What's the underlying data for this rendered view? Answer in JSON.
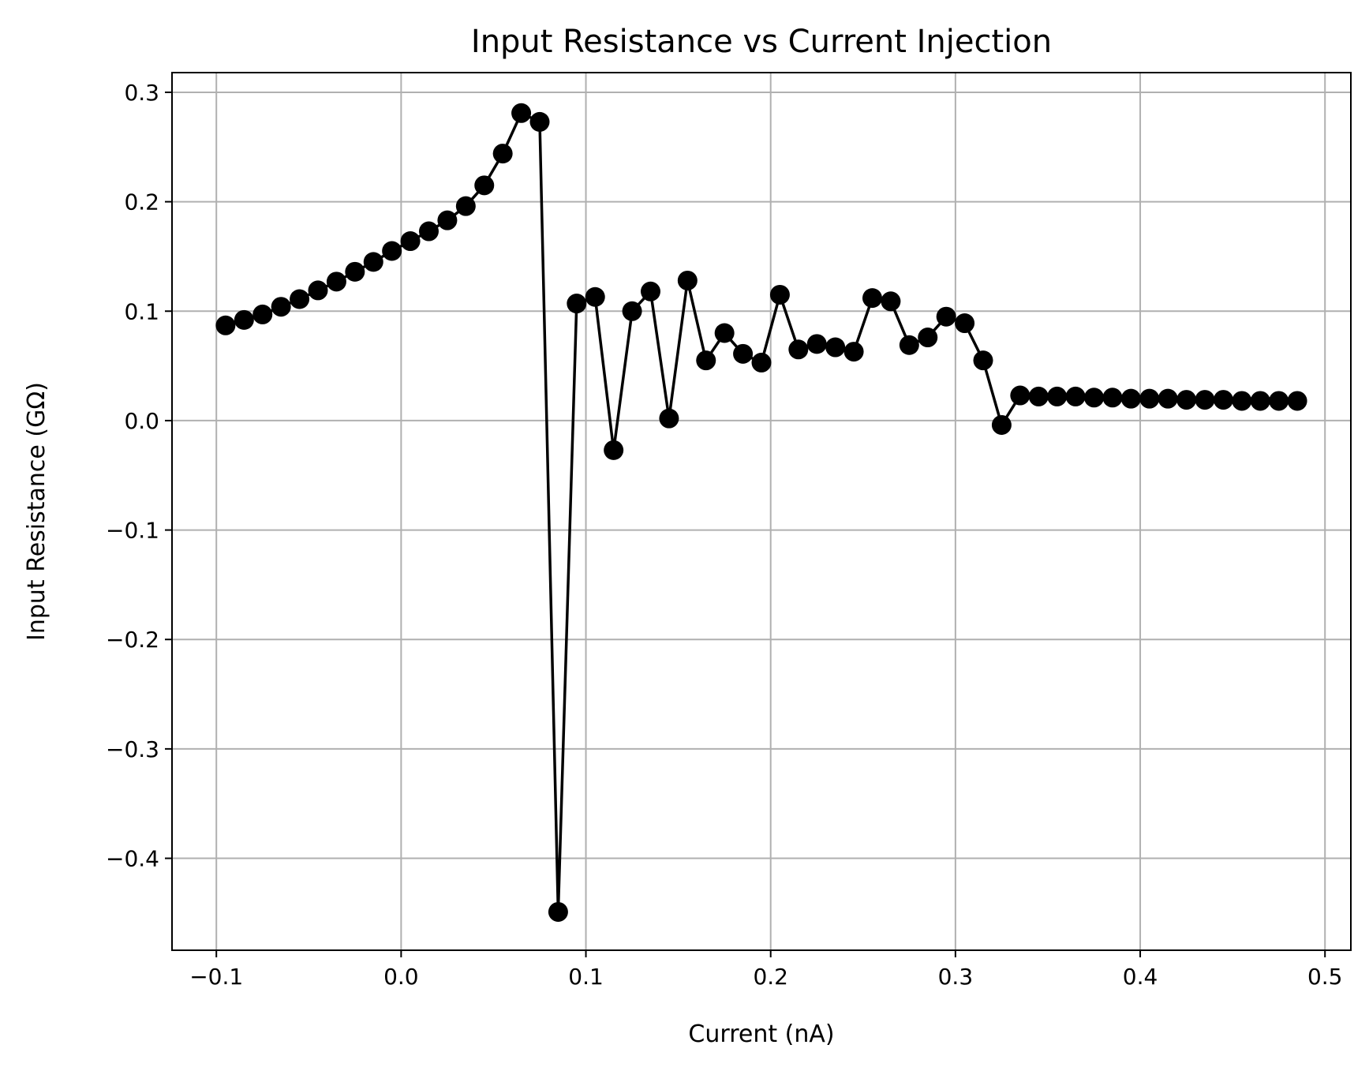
{
  "chart_data": {
    "type": "line",
    "title": "Input Resistance vs Current Injection",
    "xlabel": "Current (nA)",
    "ylabel": "Input Resistance (GΩ)",
    "xlim": [
      -0.124,
      0.514
    ],
    "ylim": [
      -0.484,
      0.318
    ],
    "xticks": [
      -0.1,
      0.0,
      0.1,
      0.2,
      0.3,
      0.4,
      0.5
    ],
    "xtick_labels": [
      "−0.1",
      "0.0",
      "0.1",
      "0.2",
      "0.3",
      "0.4",
      "0.5"
    ],
    "yticks": [
      0.3,
      0.2,
      0.1,
      0.0,
      -0.1,
      -0.2,
      -0.3,
      -0.4
    ],
    "ytick_labels": [
      "0.3",
      "0.2",
      "0.1",
      "0.0",
      "−0.1",
      "−0.2",
      "−0.3",
      "−0.4"
    ],
    "grid": true,
    "legend": null,
    "color": "#000000",
    "marker": "circle",
    "series": [
      {
        "x": [
          -0.095,
          -0.085,
          -0.075,
          -0.065,
          -0.055,
          -0.045,
          -0.035,
          -0.025,
          -0.015,
          -0.005,
          0.005,
          0.015,
          0.025,
          0.035,
          0.045,
          0.055,
          0.065,
          0.075,
          0.085,
          0.095,
          0.105,
          0.115,
          0.125,
          0.135,
          0.145,
          0.155,
          0.165,
          0.175,
          0.185,
          0.195,
          0.205,
          0.215,
          0.225,
          0.235,
          0.245,
          0.255,
          0.265,
          0.275,
          0.285,
          0.295,
          0.305,
          0.315,
          0.325,
          0.335,
          0.345,
          0.355,
          0.365,
          0.375,
          0.385,
          0.395,
          0.405,
          0.415,
          0.425,
          0.435,
          0.445,
          0.455,
          0.465,
          0.475,
          0.485
        ],
        "y": [
          0.087,
          0.092,
          0.097,
          0.104,
          0.111,
          0.119,
          0.127,
          0.136,
          0.145,
          0.155,
          0.164,
          0.173,
          0.183,
          0.196,
          0.215,
          0.244,
          0.281,
          0.273,
          -0.449,
          0.107,
          0.113,
          -0.027,
          0.1,
          0.118,
          0.002,
          0.128,
          0.055,
          0.08,
          0.061,
          0.053,
          0.115,
          0.065,
          0.07,
          0.067,
          0.063,
          0.112,
          0.109,
          0.069,
          0.076,
          0.095,
          0.089,
          0.055,
          -0.004,
          0.023,
          0.022,
          0.022,
          0.022,
          0.021,
          0.021,
          0.02,
          0.02,
          0.02,
          0.019,
          0.019,
          0.019,
          0.018,
          0.018,
          0.018,
          0.018
        ]
      }
    ]
  }
}
